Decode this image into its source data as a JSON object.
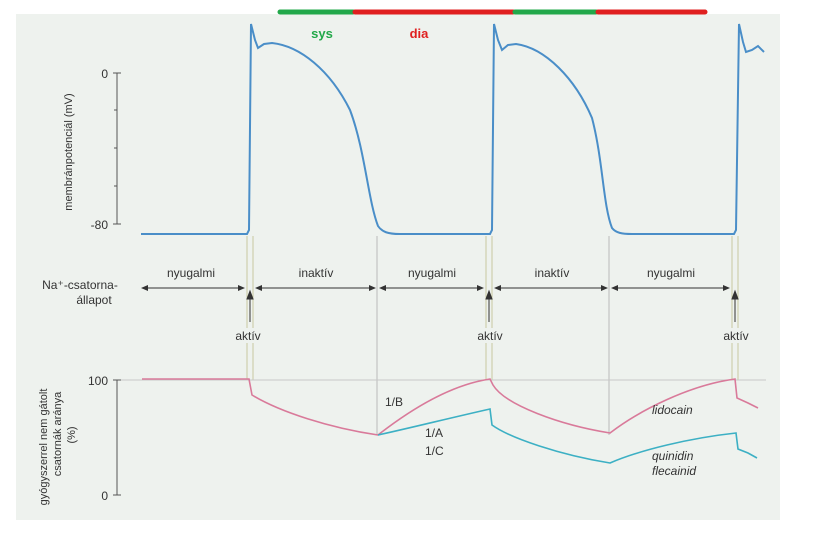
{
  "phases": {
    "sys": "sys",
    "dia": "dia",
    "sys_color": "#22a84a",
    "dia_color": "#e02020"
  },
  "top_axis": {
    "label": "membránpotenciál (mV)",
    "tick_0": "0",
    "tick_minus80": "-80"
  },
  "channel_state": {
    "label_line1": "Na⁺-csatorna-",
    "label_line2": "állapot",
    "segments": [
      "nyugalmi",
      "inaktív",
      "nyugalmi",
      "inaktív",
      "nyugalmi"
    ],
    "active_label": "aktív"
  },
  "bottom_axis": {
    "label_line1": "gyógyszerrel nem gátolt",
    "label_line2": "csatornák aránya",
    "label_line3": "(%)",
    "tick_100": "100",
    "tick_0": "0"
  },
  "curve_labels": {
    "class_1b": "1/B",
    "class_1a": "1/A",
    "class_1c": "1/C",
    "lidocain": "lidocain",
    "quinidin": "quinidin",
    "flecainid": "flecainid"
  },
  "colors": {
    "panel_bg": "#eef2ee",
    "action_potential": "#4a8ec8",
    "class_1b_curve": "#d97a9a",
    "class_1ac_curve": "#3cb0c4"
  }
}
